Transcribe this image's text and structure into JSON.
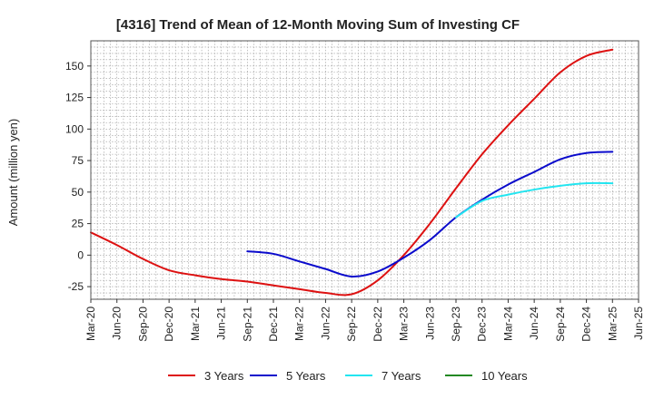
{
  "chart_data": {
    "type": "line",
    "title": "[4316]  Trend of Mean of 12-Month Moving Sum of Investing CF",
    "xlabel": "",
    "ylabel": "Amount (million yen)",
    "ylim": [
      -35,
      170
    ],
    "yticks": [
      -25,
      0,
      25,
      50,
      75,
      100,
      125,
      150
    ],
    "grid": true,
    "legend_position": "bottom-center",
    "categories": [
      "Mar-20",
      "Jun-20",
      "Sep-20",
      "Dec-20",
      "Mar-21",
      "Jun-21",
      "Sep-21",
      "Dec-21",
      "Mar-22",
      "Jun-22",
      "Sep-22",
      "Dec-22",
      "Mar-23",
      "Jun-23",
      "Sep-23",
      "Dec-23",
      "Mar-24",
      "Jun-24",
      "Sep-24",
      "Dec-24",
      "Mar-25",
      "Jun-25"
    ],
    "series": [
      {
        "name": "3 Years",
        "color": "#dd1111",
        "values": [
          18,
          8,
          -3,
          -12,
          -16,
          -19,
          -21,
          -24,
          -27,
          -30,
          -31,
          -20,
          0,
          25,
          53,
          80,
          103,
          124,
          145,
          158,
          163,
          null
        ]
      },
      {
        "name": "5 Years",
        "color": "#0a0acc",
        "values": [
          null,
          null,
          null,
          null,
          null,
          null,
          3,
          1,
          -5,
          -11,
          -17,
          -13,
          -2,
          12,
          30,
          44,
          56,
          66,
          76,
          81,
          82,
          null
        ]
      },
      {
        "name": "7 Years",
        "color": "#22e5f0",
        "values": [
          null,
          null,
          null,
          null,
          null,
          null,
          null,
          null,
          null,
          null,
          null,
          null,
          null,
          null,
          30,
          43,
          48,
          52,
          55,
          57,
          57,
          null
        ]
      },
      {
        "name": "10 Years",
        "color": "#228822",
        "values": [
          null,
          null,
          null,
          null,
          null,
          null,
          null,
          null,
          null,
          null,
          null,
          null,
          null,
          null,
          null,
          null,
          null,
          null,
          null,
          null,
          null,
          null
        ]
      }
    ]
  }
}
